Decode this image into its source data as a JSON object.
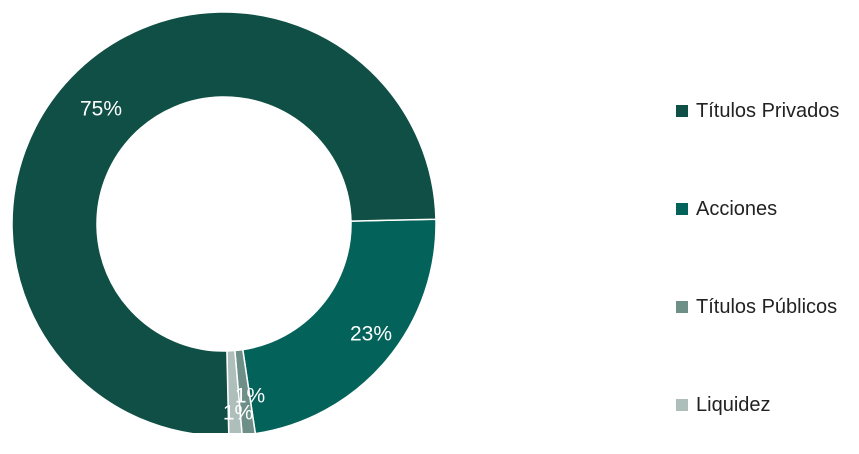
{
  "chart_data": {
    "type": "pie",
    "categories": [
      "Títulos Privados",
      "Acciones",
      "Títulos Públicos",
      "Liquidez"
    ],
    "values": [
      75,
      23,
      1,
      1
    ],
    "labels": [
      "75%",
      "23%",
      "1%",
      "1%"
    ],
    "colors": [
      "#0f4f45",
      "#03635a",
      "#6e8f88",
      "#aebfbb"
    ],
    "donut": true,
    "legend_placement": "right"
  }
}
